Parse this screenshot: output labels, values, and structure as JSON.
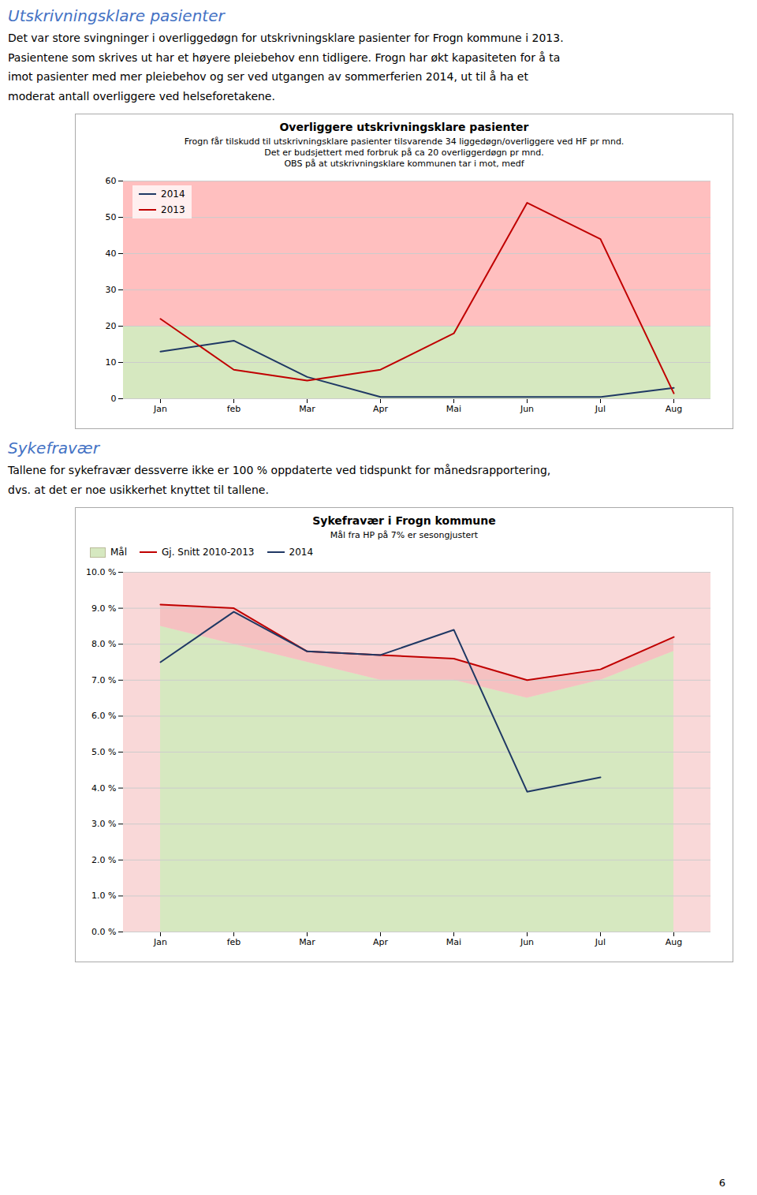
{
  "page_number": 6,
  "chart_data": [
    {
      "type": "line",
      "heading": "Utskrivningsklare pasienter",
      "text": "Det var store svingninger i overliggedøgn for utskrivningsklare pasienter for Frogn kommune i 2013.\nPasientene som skrives ut har et høyere pleiebehov enn tidligere. Frogn har økt kapasiteten for å ta\nimot pasienter med mer pleiebehov og ser ved utgangen av sommerferien 2014, ut til å ha et\nmoderat antall overliggere ved helseforetakene.",
      "title": "Overliggere utskrivningsklare pasienter",
      "subtitle": [
        "Frogn får tilskudd til utskrivningsklare pasienter tilsvarende 34 liggedøgn/overliggere ved HF pr mnd.",
        "Det er budsjettert med forbruk på ca 20 overliggerdøgn pr mnd.",
        "OBS på at utskrivningsklare kommunen tar i mot, medf"
      ],
      "categories": [
        "Jan",
        "feb",
        "Mar",
        "Apr",
        "Mai",
        "Jun",
        "Jul",
        "Aug"
      ],
      "series": [
        {
          "name": "2014",
          "color": "#1f3864",
          "values": [
            13,
            16,
            6,
            0.5,
            0.5,
            0.5,
            0.5,
            3
          ]
        },
        {
          "name": "2013",
          "color": "#c00000",
          "values": [
            22,
            8,
            5,
            8,
            18,
            54,
            44,
            1.5
          ]
        }
      ],
      "ylim": [
        0,
        60
      ],
      "yticks": [
        0,
        10,
        20,
        30,
        40,
        50,
        60
      ],
      "grid": true,
      "legend": "upper left",
      "bands": [
        {
          "from": 0,
          "to": 20,
          "color": "#d6e8c0"
        },
        {
          "from": 20,
          "to": 60,
          "color": "#ff8080"
        }
      ]
    },
    {
      "type": "line",
      "heading": "Sykefravær",
      "text": "Tallene for sykefravær dessverre ikke er 100 % oppdaterte ved tidspunkt for månedsrapportering,\ndvs. at det er noe usikkerhet knyttet til tallene.",
      "title": "Sykefravær i Frogn kommune",
      "subtitle": [
        "Mål fra HP på 7% er sesongjustert"
      ],
      "categories": [
        "Jan",
        "feb",
        "Mar",
        "Apr",
        "Mai",
        "Jun",
        "Jul",
        "Aug"
      ],
      "series": [
        {
          "name": "Mål",
          "type": "area",
          "color": "#d6e8c0",
          "values": [
            8.5,
            8.0,
            7.5,
            7.0,
            7.0,
            6.5,
            7.0,
            7.8
          ]
        },
        {
          "name": "Gj. Snitt 2010-2013",
          "color": "#c00000",
          "values": [
            9.1,
            9.0,
            7.8,
            7.7,
            7.6,
            7.0,
            7.3,
            8.2
          ]
        },
        {
          "name": "2014",
          "color": "#1f3864",
          "values": [
            7.5,
            8.9,
            7.8,
            7.7,
            8.4,
            3.9,
            4.3,
            null
          ]
        }
      ],
      "ylim": [
        0.0,
        10.0
      ],
      "yticks": [
        {
          "value": 0,
          "label": "0.0 %"
        },
        {
          "value": 1,
          "label": "1.0 %"
        },
        {
          "value": 2,
          "label": "2.0 %"
        },
        {
          "value": 3,
          "label": "3.0 %"
        },
        {
          "value": 4,
          "label": "4.0 %"
        },
        {
          "value": 5,
          "label": "5.0 %"
        },
        {
          "value": 6,
          "label": "6.0 %"
        },
        {
          "value": 7,
          "label": "7.0 %"
        },
        {
          "value": 8,
          "label": "8.0 %"
        },
        {
          "value": 9,
          "label": "9.0 %"
        },
        {
          "value": 10,
          "label": "10.0 %"
        }
      ],
      "grid": true,
      "legend": "top",
      "bands": [
        {
          "from": 0,
          "to": 10,
          "color": "#f4b8b8"
        }
      ],
      "fill_between": {
        "from": "Mål",
        "to": "Gj. Snitt 2010-2013",
        "color": "#f4b8b8"
      }
    }
  ]
}
